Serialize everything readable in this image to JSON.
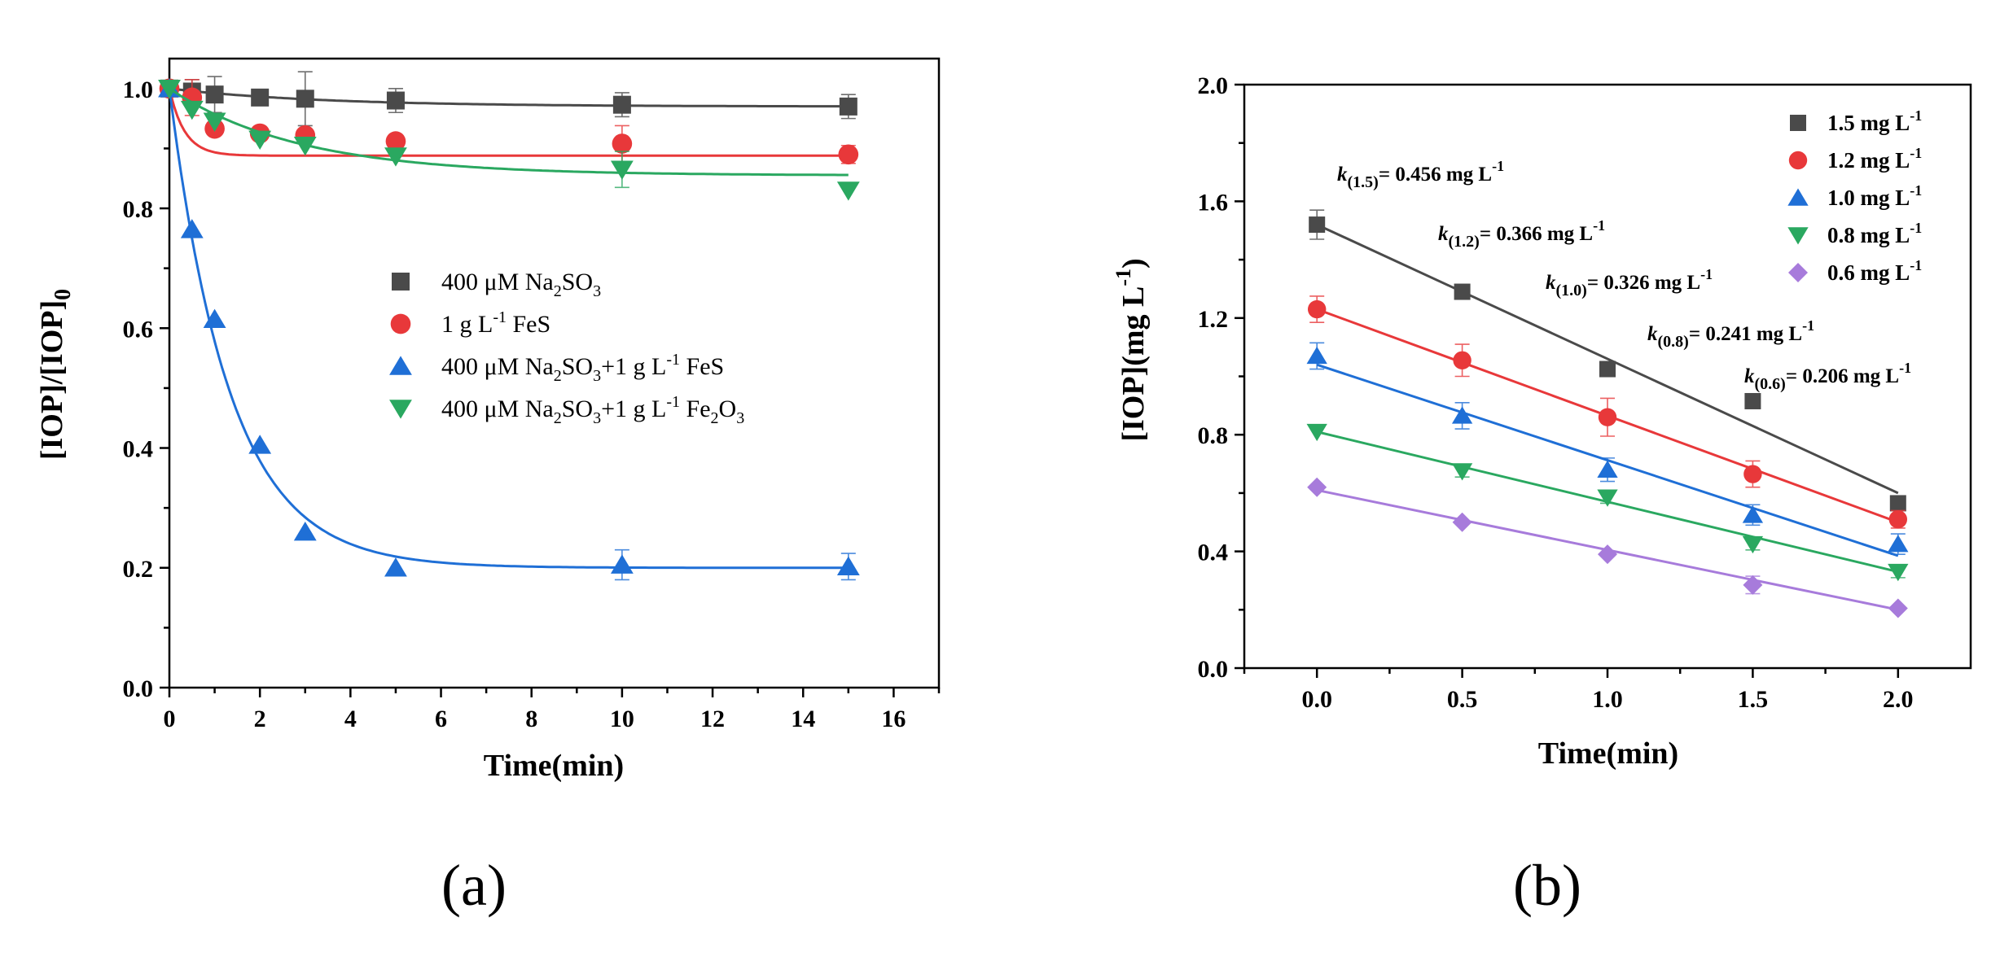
{
  "chart_data": [
    {
      "type": "scatter",
      "panel_label": "(a)",
      "xlabel": "Time(min)",
      "ylabel": "[IOP]/[IOP]",
      "ylabel_sub": "0",
      "xlim": [
        0,
        17
      ],
      "ylim": [
        0,
        1.05
      ],
      "xticks": [
        "0",
        "2",
        "4",
        "6",
        "8",
        "10",
        "12",
        "14",
        "16"
      ],
      "yticks": [
        "0.0",
        "0.2",
        "0.4",
        "0.6",
        "0.8",
        "1.0"
      ],
      "legend_position": "center-right",
      "series": [
        {
          "name": "400 μM Na2SO3",
          "legend_parts": [
            "400 μM Na",
            "2",
            "SO",
            "3"
          ],
          "marker": "square",
          "color": "#4a4a4a",
          "x": [
            0,
            0.5,
            1,
            2,
            3,
            5,
            10,
            15
          ],
          "y": [
            1.0,
            0.995,
            0.99,
            0.985,
            0.983,
            0.98,
            0.973,
            0.97
          ],
          "err": [
            0,
            0.02,
            0.03,
            0,
            0.045,
            0.02,
            0.02,
            0.02
          ],
          "fit": {
            "a": 0.97,
            "b": 0.03,
            "k": 0.3
          }
        },
        {
          "name": "1 g L-1 FeS",
          "legend_parts": [
            "1 g L",
            "-1",
            " FeS",
            ""
          ],
          "marker": "circle",
          "color": "#e8383a",
          "x": [
            0,
            0.5,
            1,
            2,
            3,
            5,
            10,
            15
          ],
          "y": [
            1.0,
            0.985,
            0.933,
            0.925,
            0.922,
            0.912,
            0.908,
            0.89
          ],
          "err": [
            0,
            0.03,
            0,
            0,
            0,
            0,
            0.03,
            0.015
          ],
          "fit": {
            "a": 0.888,
            "b": 0.112,
            "k": 3.0
          }
        },
        {
          "name": "400 μM Na2SO3+1 g L-1 FeS",
          "legend_parts": [
            "400 μM Na",
            "2",
            "SO",
            "3",
            "+1 g L",
            "-1",
            " FeS"
          ],
          "marker": "triangle-up",
          "color": "#1f6fd6",
          "x": [
            0,
            0.5,
            1,
            2,
            3,
            5,
            10,
            15
          ],
          "y": [
            1.0,
            0.765,
            0.615,
            0.405,
            0.26,
            0.2,
            0.205,
            0.202
          ],
          "err": [
            0,
            0,
            0,
            0,
            0,
            0,
            0.025,
            0.022
          ],
          "fit": {
            "a": 0.2,
            "b": 0.8,
            "k": 0.75
          }
        },
        {
          "name": "400 μM Na2SO3+1 g L-1 Fe2O3",
          "legend_parts": [
            "400 μM Na",
            "2",
            "SO",
            "3",
            "+1 g L",
            "-1",
            " Fe",
            "2",
            "O",
            "3"
          ],
          "marker": "triangle-down",
          "color": "#2aa860",
          "x": [
            0,
            0.5,
            1,
            2,
            3,
            5,
            10,
            15
          ],
          "y": [
            1.0,
            0.965,
            0.945,
            0.915,
            0.905,
            0.887,
            0.865,
            0.83
          ],
          "err": [
            0,
            0,
            0,
            0,
            0,
            0,
            0.03,
            0
          ],
          "fit": {
            "a": 0.855,
            "b": 0.145,
            "k": 0.35
          }
        }
      ]
    },
    {
      "type": "scatter",
      "panel_label": "(b)",
      "xlabel": "Time(min)",
      "ylabel": "[IOP](mg L",
      "ylabel_sup": "-1",
      "xlim": [
        -0.25,
        2.25
      ],
      "ylim": [
        0,
        2.0
      ],
      "xticks": [
        "0.0",
        "0.5",
        "1.0",
        "1.5",
        "2.0"
      ],
      "yticks": [
        "0.0",
        "0.4",
        "0.8",
        "1.2",
        "1.6",
        "2.0"
      ],
      "legend_position": "top-right",
      "series": [
        {
          "name": "1.5 mg L-1",
          "legend_main": "1.5 mg L",
          "legend_sup": "-1",
          "marker": "square",
          "color": "#4a4a4a",
          "x": [
            0,
            0.5,
            1,
            1.5,
            2
          ],
          "y": [
            1.52,
            1.29,
            1.025,
            0.915,
            0.565
          ],
          "err": [
            0.05,
            0,
            0,
            0,
            0
          ],
          "fit_line": [
            1.52,
            0.6
          ],
          "annotation": {
            "k_sub": "(1.5)",
            "text": "= 0.456 mg L",
            "sup": "-1"
          }
        },
        {
          "name": "1.2 mg L-1",
          "legend_main": "1.2 mg L",
          "legend_sup": "-1",
          "marker": "circle",
          "color": "#e8383a",
          "x": [
            0,
            0.5,
            1,
            1.5,
            2
          ],
          "y": [
            1.23,
            1.055,
            0.86,
            0.665,
            0.51
          ],
          "err": [
            0.045,
            0.055,
            0.065,
            0.045,
            0.03
          ],
          "fit_line": [
            1.23,
            0.5
          ],
          "annotation": {
            "k_sub": "(1.2)",
            "text": "= 0.366 mg L",
            "sup": "-1"
          }
        },
        {
          "name": "1.0 mg L-1",
          "legend_main": "1.0 mg L",
          "legend_sup": "-1",
          "marker": "triangle-up",
          "color": "#1f6fd6",
          "x": [
            0,
            0.5,
            1,
            1.5,
            2
          ],
          "y": [
            1.07,
            0.865,
            0.68,
            0.525,
            0.425
          ],
          "err": [
            0.045,
            0.045,
            0.04,
            0.035,
            0.035
          ],
          "fit_line": [
            1.04,
            0.385
          ],
          "annotation": {
            "k_sub": "(1.0)",
            "text": "= 0.326 mg L",
            "sup": "-1"
          }
        },
        {
          "name": "0.8 mg L-1",
          "legend_main": "0.8 mg L",
          "legend_sup": "-1",
          "marker": "triangle-down",
          "color": "#2aa860",
          "x": [
            0,
            0.5,
            1,
            1.5,
            2
          ],
          "y": [
            0.81,
            0.675,
            0.585,
            0.425,
            0.33
          ],
          "err": [
            0,
            0.02,
            0.02,
            0.02,
            0.02
          ],
          "fit_line": [
            0.81,
            0.33
          ],
          "annotation": {
            "k_sub": "(0.8)",
            "text": "= 0.241 mg L",
            "sup": "-1"
          }
        },
        {
          "name": "0.6 mg L-1",
          "legend_main": "0.6 mg L",
          "legend_sup": "-1",
          "marker": "diamond",
          "color": "#a77bdb",
          "x": [
            0,
            0.5,
            1,
            1.5,
            2
          ],
          "y": [
            0.62,
            0.5,
            0.39,
            0.285,
            0.205
          ],
          "err": [
            0,
            0,
            0,
            0.03,
            0
          ],
          "fit_line": [
            0.61,
            0.2
          ],
          "annotation": {
            "k_sub": "(0.6)",
            "text": "= 0.206  mg L",
            "sup": "-1"
          }
        }
      ]
    }
  ]
}
